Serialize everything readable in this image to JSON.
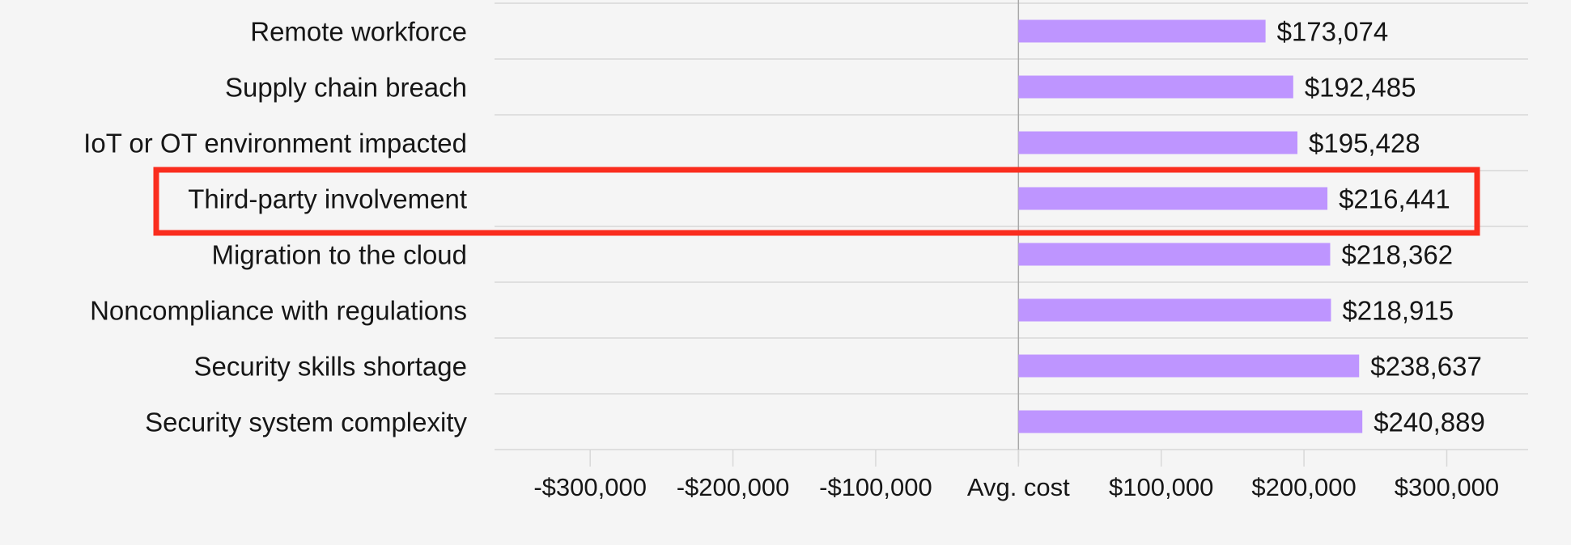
{
  "chart_data": {
    "type": "bar",
    "orientation": "horizontal",
    "title": "",
    "xlabel": "",
    "ylabel": "",
    "categories": [
      "Remote workforce",
      "Supply chain breach",
      "IoT or OT environment impacted",
      "Third-party involvement",
      "Migration to the cloud",
      "Noncompliance with regulations",
      "Security skills shortage",
      "Security system complexity"
    ],
    "values": [
      173074,
      192485,
      195428,
      216441,
      218362,
      218915,
      238637,
      240889
    ],
    "value_labels": [
      "$173,074",
      "$192,485",
      "$195,428",
      "$216,441",
      "$218,362",
      "$218,915",
      "$238,637",
      "$240,889"
    ],
    "xlim": [
      -367000,
      357000
    ],
    "x_ticks": [
      -300000,
      -200000,
      -100000,
      0,
      100000,
      200000,
      300000
    ],
    "x_tick_labels": [
      "-$300,000",
      "-$200,000",
      "-$100,000",
      "Avg. cost",
      "$100,000",
      "$200,000",
      "$300,000"
    ],
    "highlighted_category": "Third-party involvement",
    "grid": "horizontal row separators",
    "legend": "none",
    "colors": {
      "bar": "#be95ff",
      "highlight_box": "#fa2d1e",
      "grid": "#d8d8d8",
      "zero_line": "#a8a8a8",
      "background": "#f5f5f5",
      "text": "#161616"
    }
  }
}
